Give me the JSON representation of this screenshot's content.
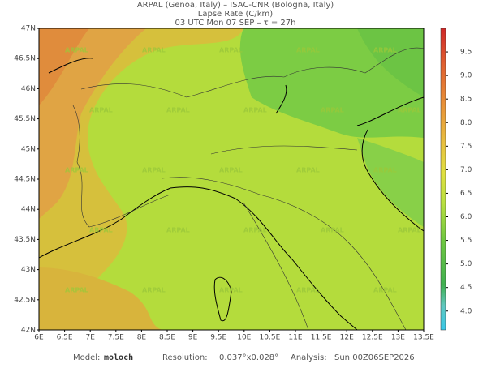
{
  "header": {
    "line1": "ARPAL (Genoa, Italy)  –  ISAC-CNR (Bologna, Italy)",
    "line2": "Lapse Rate (C/km)",
    "line3": "03 UTC Mon 07 SEP  –  τ = 27h"
  },
  "map": {
    "lon_ticks": [
      {
        "value": 6,
        "label": "6E"
      },
      {
        "value": 6.5,
        "label": "6.5E"
      },
      {
        "value": 7,
        "label": "7E"
      },
      {
        "value": 7.5,
        "label": "7.5E"
      },
      {
        "value": 8,
        "label": "8E"
      },
      {
        "value": 8.5,
        "label": "8.5E"
      },
      {
        "value": 9,
        "label": "9E"
      },
      {
        "value": 9.5,
        "label": "9.5E"
      },
      {
        "value": 10,
        "label": "10E"
      },
      {
        "value": 10.5,
        "label": "10.5E"
      },
      {
        "value": 11,
        "label": "11E"
      },
      {
        "value": 11.5,
        "label": "11.5E"
      },
      {
        "value": 12,
        "label": "12E"
      },
      {
        "value": 12.5,
        "label": "12.5E"
      },
      {
        "value": 13,
        "label": "13E"
      },
      {
        "value": 13.5,
        "label": "13.5E"
      }
    ],
    "lat_ticks": [
      {
        "value": 42,
        "label": "42N"
      },
      {
        "value": 42.5,
        "label": "42.5N"
      },
      {
        "value": 43,
        "label": "43N"
      },
      {
        "value": 43.5,
        "label": "43.5N"
      },
      {
        "value": 44,
        "label": "44N"
      },
      {
        "value": 44.5,
        "label": "44.5N"
      },
      {
        "value": 45,
        "label": "45N"
      },
      {
        "value": 45.5,
        "label": "45.5N"
      },
      {
        "value": 46,
        "label": "46N"
      },
      {
        "value": 46.5,
        "label": "46.5N"
      },
      {
        "value": 47,
        "label": "47N"
      }
    ],
    "watermark": "ARPAL"
  },
  "colorbar": {
    "range": [
      3.6,
      10
    ],
    "ticks": [
      {
        "value": 4,
        "label": "4.0"
      },
      {
        "value": 4.5,
        "label": "4.5"
      },
      {
        "value": 5,
        "label": "5.0"
      },
      {
        "value": 5.5,
        "label": "5.5"
      },
      {
        "value": 6,
        "label": "6.0"
      },
      {
        "value": 6.5,
        "label": "6.5"
      },
      {
        "value": 7,
        "label": "7.0"
      },
      {
        "value": 7.5,
        "label": "7.5"
      },
      {
        "value": 8,
        "label": "8.0"
      },
      {
        "value": 8.5,
        "label": "8.5"
      },
      {
        "value": 9,
        "label": "9.0"
      },
      {
        "value": 9.5,
        "label": "9.5"
      }
    ]
  },
  "footer": {
    "model_label": "Model:",
    "model": "moloch",
    "resolution_label": "Resolution:",
    "resolution": "0.037°x0.028°",
    "analysis_label": "Analysis:",
    "analysis": "Sun 00Z06SEP2026"
  }
}
